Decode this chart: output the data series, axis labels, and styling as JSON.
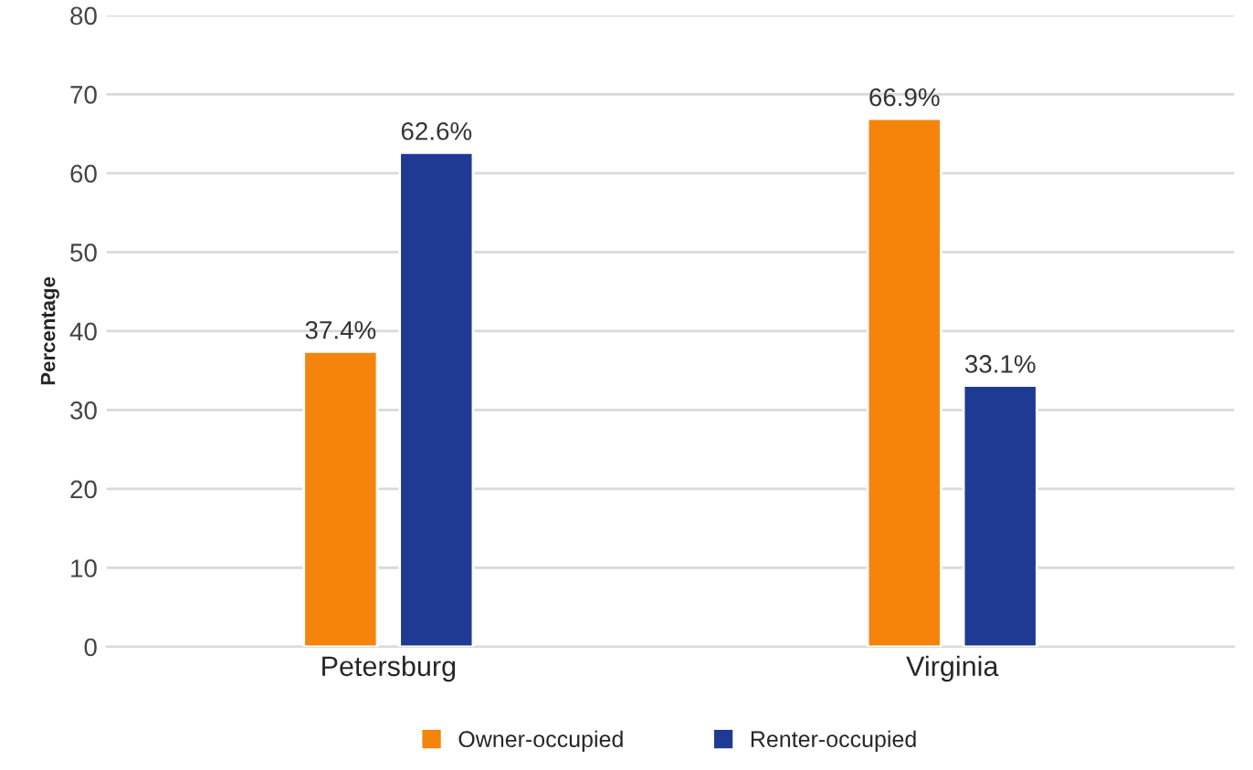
{
  "chart_data": {
    "type": "bar",
    "ylabel": "Percentage",
    "categories": [
      "Petersburg",
      "Virginia"
    ],
    "series": [
      {
        "name": "Owner-occupied",
        "color": "#f5840c",
        "values": [
          37.4,
          66.9
        ],
        "value_labels": [
          "37.4%",
          "66.9%"
        ]
      },
      {
        "name": "Renter-occupied",
        "color": "#1f3a93",
        "values": [
          62.6,
          33.1
        ],
        "value_labels": [
          "62.6%",
          "33.1%"
        ]
      }
    ],
    "ylim": [
      0,
      80
    ],
    "yticks": [
      0,
      10,
      20,
      30,
      40,
      50,
      60,
      70,
      80
    ],
    "grid": "y",
    "legend": "bottom"
  }
}
